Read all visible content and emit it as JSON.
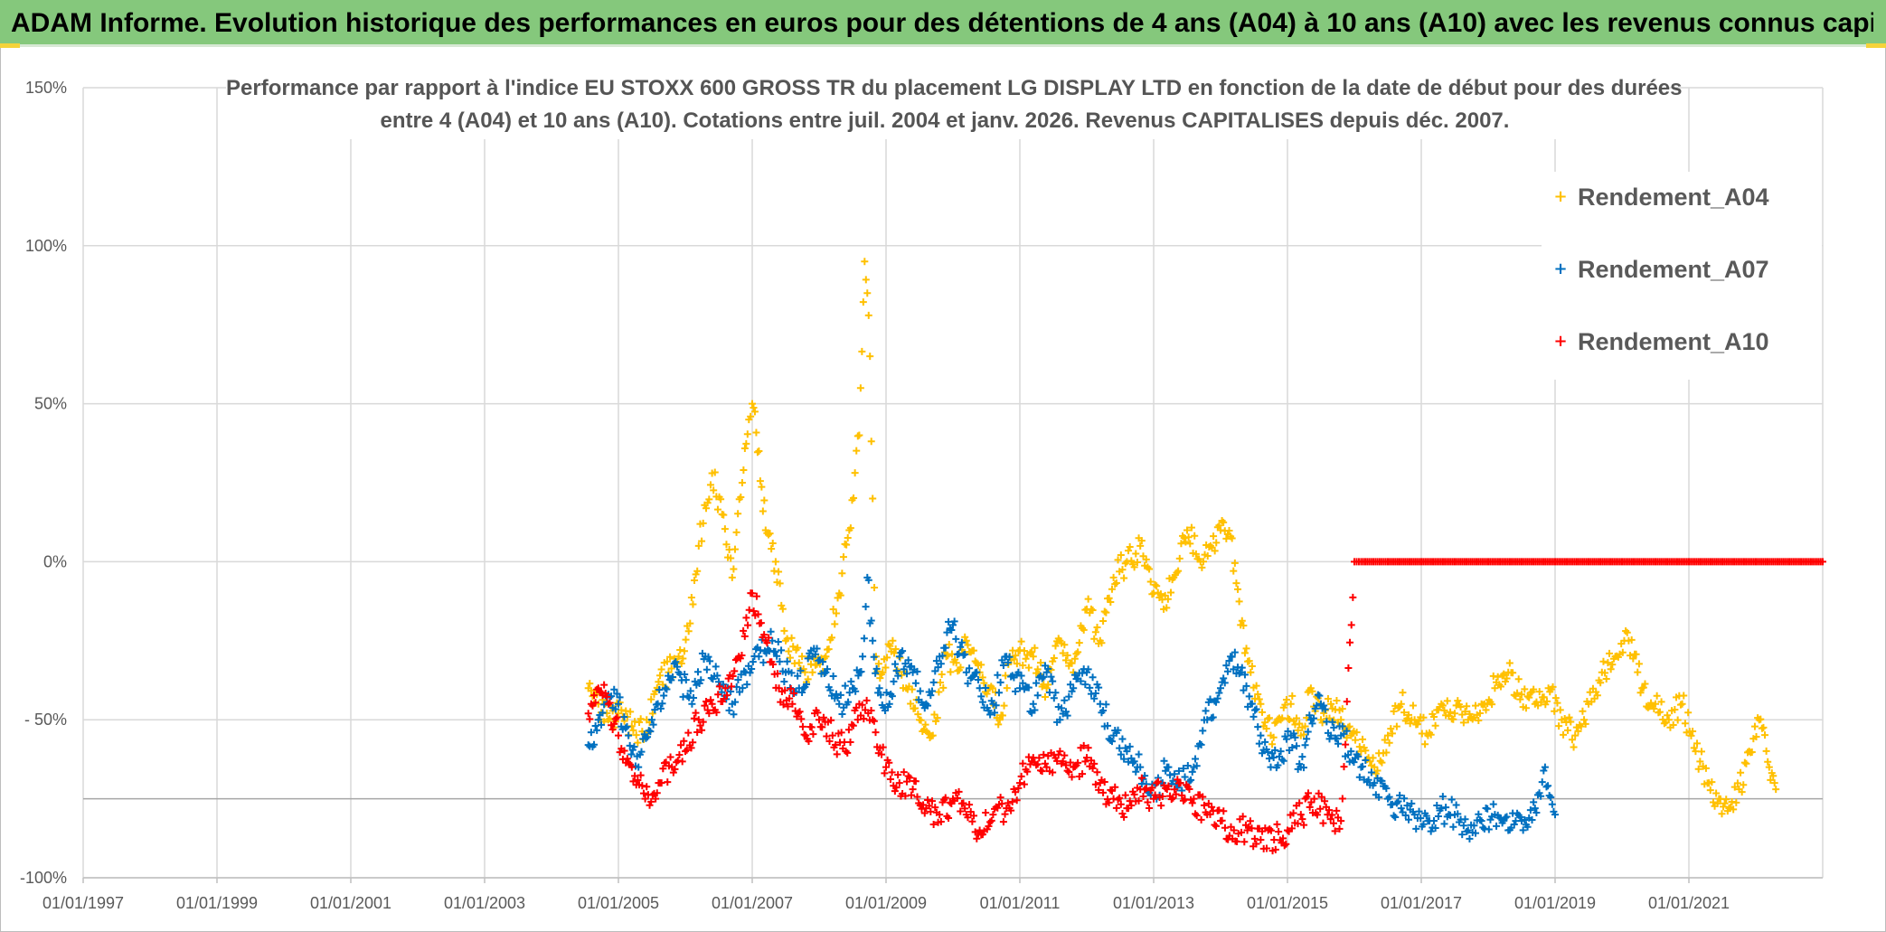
{
  "header": {
    "title": "ADAM Informe. Evolution historique des performances en euros pour des détentions de 4 ans (A04) à 10 ans (A10) avec les revenus connus capitalisés"
  },
  "colors": {
    "banner": "#85c87c",
    "A04": "#FFC000",
    "A07": "#0070C0",
    "A10": "#FF0000",
    "grid": "#d9d9d9",
    "text": "#595959"
  },
  "chart_data": {
    "type": "scatter",
    "title_lines": [
      "Performance par rapport à l'indice EU STOXX 600 GROSS TR  du placement LG DISPLAY LTD en fonction de la date de début pour des durées",
      "entre 4 (A04) et 10 ans (A10). Cotations entre juil. 2004 et janv. 2026. Revenus CAPITALISES depuis déc. 2007."
    ],
    "xlabel": "",
    "ylabel": "",
    "x_axis": {
      "type": "date",
      "min": 1997.0,
      "max": 2023.0,
      "ticks": [
        1997,
        1999,
        2001,
        2003,
        2005,
        2007,
        2009,
        2011,
        2013,
        2015,
        2017,
        2019,
        2021
      ],
      "tick_labels": [
        "01/01/1997",
        "01/01/1999",
        "01/01/2001",
        "01/01/2003",
        "01/01/2005",
        "01/01/2007",
        "01/01/2009",
        "01/01/2011",
        "01/01/2013",
        "01/01/2015",
        "01/01/2017",
        "01/01/2019",
        "01/01/2021"
      ]
    },
    "y_axis": {
      "min": -100,
      "max": 150,
      "ticks": [
        -100,
        -50,
        0,
        50,
        100,
        150
      ],
      "tick_labels": [
        "-100%",
        "- 50%",
        "0%",
        "50%",
        "100%",
        "150%"
      ],
      "reference_line": -75
    },
    "legend": {
      "position": "top-right",
      "entries": [
        "Rendement_A04",
        "Rendement_A07",
        "Rendement_A10"
      ]
    },
    "marker": "+",
    "series": [
      {
        "name": "Rendement_A04",
        "key": "A04",
        "x": [
          2004.55,
          2004.7,
          2004.85,
          2005.0,
          2005.2,
          2005.4,
          2005.6,
          2005.75,
          2005.9,
          2006.05,
          2006.2,
          2006.4,
          2006.55,
          2006.7,
          2006.85,
          2006.95,
          2007.0,
          2007.1,
          2007.2,
          2007.35,
          2007.5,
          2007.7,
          2007.9,
          2008.1,
          2008.3,
          2008.45,
          2008.6,
          2008.68,
          2008.72,
          2008.76,
          2008.8,
          2008.85,
          2008.95,
          2009.1,
          2009.3,
          2009.5,
          2009.7,
          2009.9,
          2010.05,
          2010.2,
          2010.4,
          2010.55,
          2010.7,
          2010.85,
          2011.0,
          2011.2,
          2011.4,
          2011.6,
          2011.8,
          2012.0,
          2012.2,
          2012.4,
          2012.6,
          2012.8,
          2013.0,
          2013.15,
          2013.3,
          2013.5,
          2013.7,
          2013.85,
          2014.0,
          2014.15,
          2014.3,
          2014.45,
          2014.6,
          2014.75,
          2014.9,
          2015.05,
          2015.2,
          2015.35,
          2015.5,
          2015.65,
          2015.8,
          2015.95,
          2016.1,
          2016.3,
          2016.5,
          2016.7,
          2016.9,
          2017.1,
          2017.3,
          2017.5,
          2017.7,
          2017.9,
          2018.1,
          2018.3,
          2018.5,
          2018.7,
          2018.9,
          2019.1,
          2019.3,
          2019.5,
          2019.7,
          2019.9,
          2020.1,
          2020.3,
          2020.5,
          2020.7,
          2020.9,
          2021.1,
          2021.3,
          2021.45,
          2021.6,
          2021.75,
          2021.9,
          2022.05,
          2022.2,
          2022.3
        ],
        "values": [
          -40,
          -45,
          -50,
          -48,
          -52,
          -55,
          -38,
          -35,
          -30,
          -22,
          5,
          28,
          15,
          -5,
          25,
          45,
          50,
          35,
          10,
          0,
          -25,
          -32,
          -35,
          -30,
          -10,
          10,
          40,
          95,
          85,
          65,
          20,
          -30,
          -35,
          -25,
          -40,
          -50,
          -55,
          -30,
          -32,
          -25,
          -35,
          -40,
          -50,
          -30,
          -28,
          -30,
          -40,
          -25,
          -35,
          -15,
          -25,
          -5,
          0,
          5,
          -10,
          -15,
          -5,
          10,
          0,
          5,
          10,
          8,
          -20,
          -35,
          -45,
          -55,
          -50,
          -45,
          -55,
          -40,
          -50,
          -45,
          -50,
          -55,
          -60,
          -65,
          -55,
          -45,
          -50,
          -55,
          -45,
          -48,
          -50,
          -45,
          -40,
          -35,
          -42,
          -45,
          -40,
          -50,
          -55,
          -45,
          -35,
          -30,
          -25,
          -40,
          -45,
          -50,
          -45,
          -60,
          -70,
          -75,
          -78,
          -72,
          -60,
          -50,
          -65,
          -72
        ]
      },
      {
        "name": "Rendement_A07",
        "key": "A07",
        "x": [
          2004.55,
          2004.7,
          2004.85,
          2005.0,
          2005.15,
          2005.3,
          2005.5,
          2005.7,
          2005.9,
          2006.1,
          2006.3,
          2006.5,
          2006.7,
          2006.9,
          2007.1,
          2007.3,
          2007.5,
          2007.7,
          2007.9,
          2008.1,
          2008.3,
          2008.5,
          2008.65,
          2008.72,
          2008.8,
          2008.9,
          2009.05,
          2009.2,
          2009.4,
          2009.6,
          2009.8,
          2010.0,
          2010.2,
          2010.4,
          2010.6,
          2010.8,
          2011.0,
          2011.2,
          2011.4,
          2011.6,
          2011.8,
          2012.0,
          2012.2,
          2012.4,
          2012.6,
          2012.8,
          2013.0,
          2013.2,
          2013.4,
          2013.6,
          2013.8,
          2014.0,
          2014.15,
          2014.3,
          2014.45,
          2014.6,
          2014.75,
          2014.9,
          2015.05,
          2015.2,
          2015.35,
          2015.5,
          2015.65,
          2015.8,
          2015.95,
          2016.1,
          2016.3,
          2016.5,
          2016.7,
          2016.9,
          2017.1,
          2017.3,
          2017.5,
          2017.7,
          2017.9,
          2018.1,
          2018.3,
          2018.5,
          2018.7,
          2018.85,
          2019.0
        ],
        "values": [
          -58,
          -50,
          -42,
          -45,
          -55,
          -65,
          -50,
          -40,
          -35,
          -45,
          -30,
          -38,
          -45,
          -35,
          -30,
          -25,
          -35,
          -40,
          -30,
          -35,
          -45,
          -40,
          -30,
          -5,
          -25,
          -40,
          -45,
          -30,
          -35,
          -45,
          -30,
          -20,
          -35,
          -40,
          -45,
          -30,
          -40,
          -45,
          -35,
          -50,
          -40,
          -35,
          -45,
          -55,
          -60,
          -65,
          -75,
          -65,
          -70,
          -65,
          -50,
          -40,
          -30,
          -35,
          -45,
          -55,
          -65,
          -60,
          -55,
          -65,
          -50,
          -45,
          -55,
          -55,
          -60,
          -65,
          -70,
          -75,
          -78,
          -80,
          -82,
          -78,
          -80,
          -85,
          -82,
          -80,
          -85,
          -82,
          -78,
          -65,
          -80
        ]
      },
      {
        "name": "Rendement_A10",
        "key": "A10",
        "x": [
          2004.55,
          2004.7,
          2004.85,
          2005.0,
          2005.2,
          2005.4,
          2005.6,
          2005.8,
          2006.0,
          2006.2,
          2006.4,
          2006.6,
          2006.8,
          2007.0,
          2007.2,
          2007.4,
          2007.6,
          2007.8,
          2008.0,
          2008.2,
          2008.4,
          2008.6,
          2008.8,
          2009.0,
          2009.2,
          2009.4,
          2009.6,
          2009.8,
          2010.0,
          2010.2,
          2010.4,
          2010.6,
          2010.8,
          2011.0,
          2011.2,
          2011.4,
          2011.6,
          2011.8,
          2012.0,
          2012.2,
          2012.4,
          2012.6,
          2012.8,
          2013.0,
          2013.2,
          2013.4,
          2013.6,
          2013.8,
          2014.0,
          2014.2,
          2014.4,
          2014.6,
          2014.8,
          2015.0,
          2015.2,
          2015.4,
          2015.6,
          2015.8,
          2016.0,
          2016.1,
          2016.5,
          2017.0,
          2017.5,
          2018.0,
          2018.5,
          2019.0,
          2019.5,
          2020.0,
          2020.5,
          2021.0,
          2021.5,
          2022.0,
          2022.5,
          2023.0
        ],
        "values": [
          -48,
          -40,
          -45,
          -55,
          -65,
          -75,
          -70,
          -65,
          -60,
          -50,
          -45,
          -40,
          -30,
          -10,
          -25,
          -40,
          -45,
          -55,
          -50,
          -55,
          -60,
          -45,
          -50,
          -65,
          -70,
          -72,
          -78,
          -80,
          -75,
          -80,
          -85,
          -80,
          -78,
          -70,
          -62,
          -65,
          -60,
          -65,
          -62,
          -70,
          -75,
          -78,
          -72,
          -75,
          -72,
          -70,
          -75,
          -80,
          -82,
          -85,
          -85,
          -88,
          -88,
          -85,
          -80,
          -75,
          -80,
          -82,
          0,
          0,
          0,
          0,
          0,
          0,
          0,
          0,
          0,
          0,
          0,
          0,
          0,
          0,
          0,
          0
        ]
      }
    ]
  }
}
